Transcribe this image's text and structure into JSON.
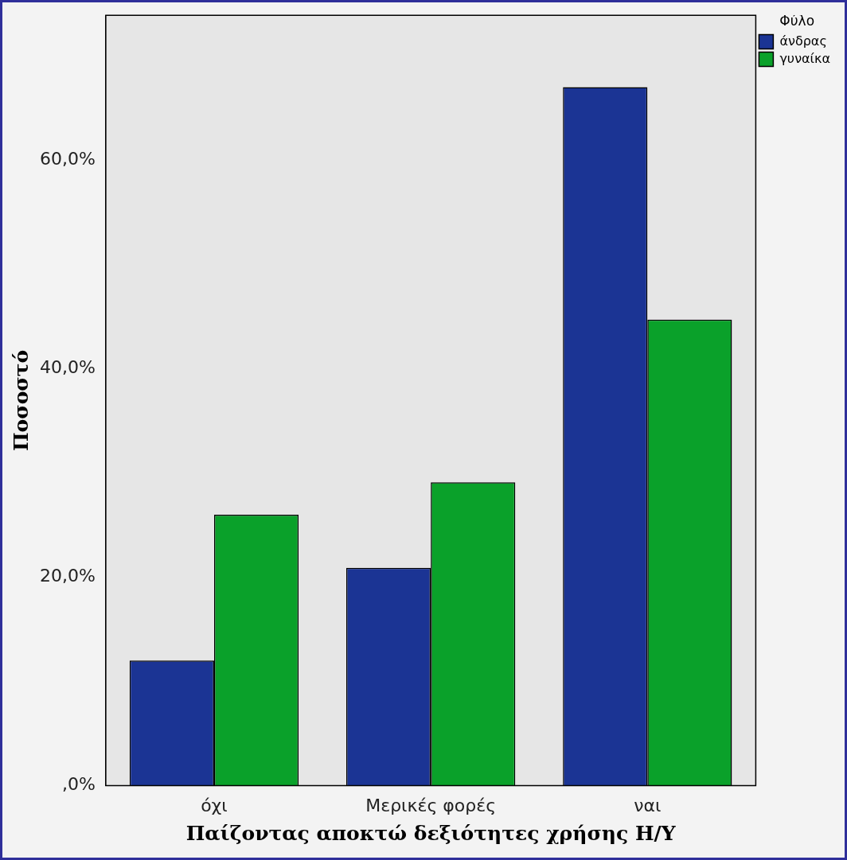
{
  "chart_data": {
    "type": "bar",
    "xlabel": "Παίζοντας αποκτώ δεξιότητες χρήσης Η/Υ",
    "ylabel": "Ποσοστό",
    "legend_title": "Φύλο",
    "legend": "top right",
    "categories": [
      "όχι",
      "Μερικές φορές",
      "ναι"
    ],
    "series": [
      {
        "name": "άνδρας",
        "color": "#1b3494",
        "values": [
          12.0,
          20.9,
          67.0
        ]
      },
      {
        "name": "γυναίκα",
        "color": "#0aa12a",
        "values": [
          26.0,
          29.1,
          44.7
        ]
      }
    ],
    "ylim": [
      0,
      73.9
    ],
    "yticks": [
      {
        "value": 0,
        "label": ",0%"
      },
      {
        "value": 20,
        "label": "20,0%"
      },
      {
        "value": 40,
        "label": "40,0%"
      },
      {
        "value": 60,
        "label": "60,0%"
      }
    ]
  }
}
